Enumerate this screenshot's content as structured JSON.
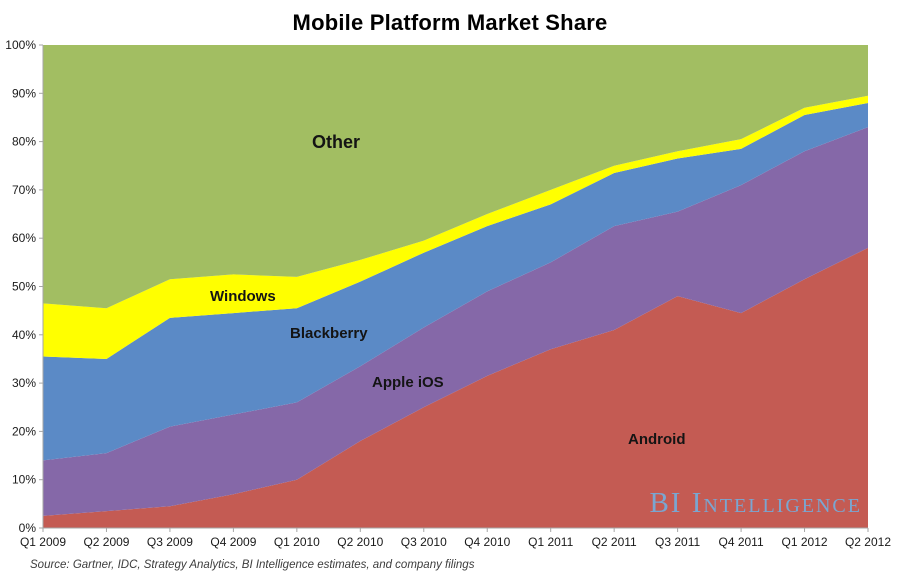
{
  "title": "Mobile Platform Market Share",
  "source_note": "Source: Gartner, IDC, Strategy Analytics, BI Intelligence estimates, and company filings",
  "watermark": "BI Intelligence",
  "colors": {
    "android": "#C45B53",
    "apple_ios": "#8568A8",
    "blackberry": "#5B8AC6",
    "windows": "#FFFF00",
    "other": "#A2BE62",
    "axis": "#a6a6a6",
    "watermark_blue": "#76ABD8",
    "label_text": "#141414"
  },
  "chart_data": {
    "type": "area",
    "stacked": true,
    "title": "Mobile Platform Market Share",
    "xlabel": "",
    "ylabel": "",
    "ylim": [
      0,
      100
    ],
    "grid": false,
    "legend_position": "inside-area-labels",
    "categories": [
      "Q1 2009",
      "Q2 2009",
      "Q3 2009",
      "Q4 2009",
      "Q1 2010",
      "Q2 2010",
      "Q3 2010",
      "Q4 2010",
      "Q1 2011",
      "Q2 2011",
      "Q3 2011",
      "Q4 2011",
      "Q1 2012",
      "Q2 2012"
    ],
    "y_tick_labels": [
      "0%",
      "10%",
      "20%",
      "30%",
      "40%",
      "50%",
      "60%",
      "70%",
      "80%",
      "90%",
      "100%"
    ],
    "series": [
      {
        "name": "Android",
        "color": "#C45B53",
        "values": [
          2.5,
          3.5,
          4.5,
          7,
          10,
          18,
          25,
          31.5,
          37,
          41,
          48,
          44.5,
          51.5,
          58
        ]
      },
      {
        "name": "Apple iOS",
        "color": "#8568A8",
        "values": [
          11.5,
          12,
          16.5,
          16.5,
          16,
          15.5,
          16.5,
          17.5,
          18,
          21.5,
          17.5,
          26.5,
          26.5,
          25
        ]
      },
      {
        "name": "Blackberry",
        "color": "#5B8AC6",
        "values": [
          21.5,
          19.5,
          22.5,
          21,
          19.5,
          17.5,
          15.5,
          13.5,
          12,
          11,
          11,
          7.5,
          7.5,
          5
        ]
      },
      {
        "name": "Windows",
        "color": "#FFFF00",
        "values": [
          11,
          10.5,
          8,
          8,
          6.5,
          4.5,
          2.5,
          2.5,
          3,
          1.5,
          1.5,
          2,
          1.5,
          1.5
        ]
      },
      {
        "name": "Other",
        "color": "#A2BE62",
        "values": [
          53.5,
          54.5,
          48.5,
          47.5,
          48,
          44.5,
          40.5,
          35,
          30,
          25,
          22,
          19.5,
          13,
          10.5
        ]
      }
    ]
  }
}
